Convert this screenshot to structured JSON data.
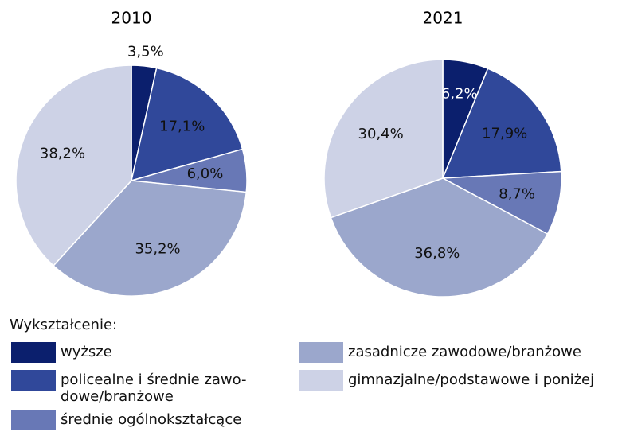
{
  "chart_data": [
    {
      "type": "pie",
      "title": "2010",
      "values": [
        3.5,
        17.1,
        6.0,
        35.2,
        38.2
      ],
      "value_labels": [
        "3,5%",
        "17,1%",
        "6,0%",
        "35,2%",
        "38,2%"
      ]
    },
    {
      "type": "pie",
      "title": "2021",
      "values": [
        6.2,
        17.9,
        8.7,
        36.8,
        30.4
      ],
      "value_labels": [
        "6,2%",
        "17,9%",
        "8,7%",
        "36,8%",
        "30,4%"
      ]
    }
  ],
  "legend": {
    "title": "Wykształcenie:",
    "items": [
      "wyższe",
      "policealne i średnie zawo-\ndowe/branżowe",
      "średnie ogólnokształcące",
      "zasadnicze zawodowe/branżowe",
      "gimnazjalne/podstawowe i poniżej"
    ],
    "colors": [
      "#0b1f6d",
      "#30489a",
      "#6878b6",
      "#9ba7cc",
      "#cdd2e6"
    ]
  }
}
